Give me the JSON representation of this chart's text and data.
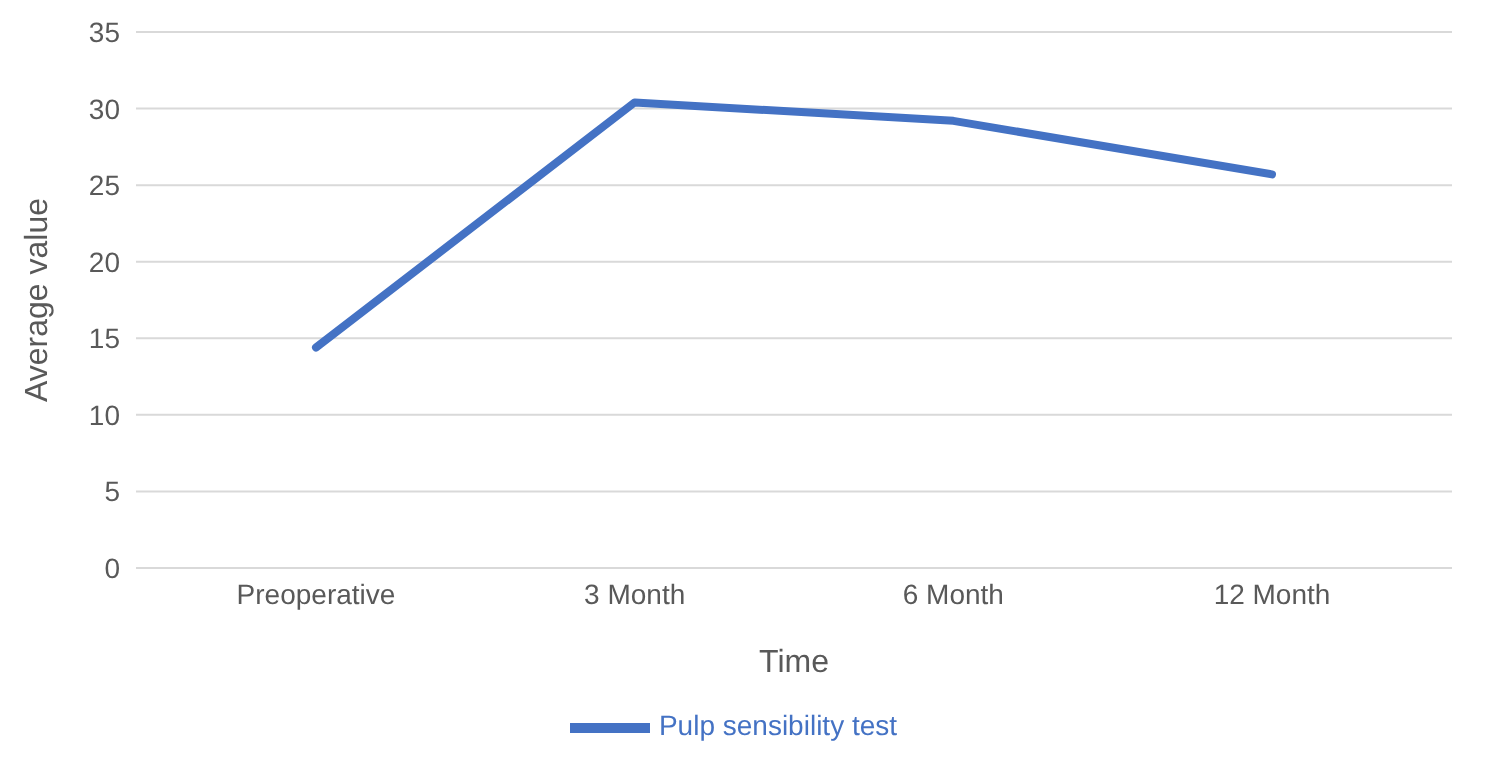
{
  "chart_data": {
    "type": "line",
    "xlabel": "Time",
    "ylabel": "Average value",
    "categories": [
      "Preoperative",
      "3 Month",
      "6 Month",
      "12 Month"
    ],
    "series": [
      {
        "name": "Pulp sensibility test",
        "color": "#4472c4",
        "values": [
          14.4,
          30.4,
          29.2,
          25.7
        ]
      }
    ],
    "ylim": [
      0,
      35
    ],
    "yticks": [
      0,
      5,
      10,
      15,
      20,
      25,
      30,
      35
    ],
    "grid": "y",
    "legend": "bottom",
    "marker": "none",
    "line_style": "solid"
  }
}
